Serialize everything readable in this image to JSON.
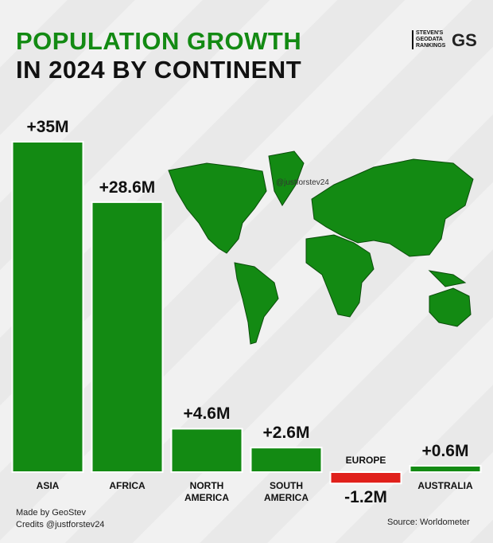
{
  "chart_data": {
    "type": "bar",
    "title": "POPULATION GROWTH",
    "subtitle": "IN 2024 BY CONTINENT",
    "categories": [
      "ASIA",
      "AFRICA",
      "NORTH AMERICA",
      "SOUTH AMERICA",
      "EUROPE",
      "AUSTRALIA"
    ],
    "values": [
      35,
      28.6,
      4.6,
      2.6,
      -1.2,
      0.6
    ],
    "value_labels": [
      "+35M",
      "+28.6M",
      "+4.6M",
      "+2.6M",
      "-1.2M",
      "+0.6M"
    ],
    "colors": [
      "#138a13",
      "#138a13",
      "#138a13",
      "#138a13",
      "#e0201b",
      "#138a13"
    ],
    "watermark": "@justforstev24"
  },
  "logo": {
    "text": "STEVEN'S GEODATA RANKINGS",
    "mark": "GS"
  },
  "footer": {
    "made_by": "Made by GeoStev",
    "credits": "Credits @justforstev24",
    "source": "Source: Worldometer"
  }
}
